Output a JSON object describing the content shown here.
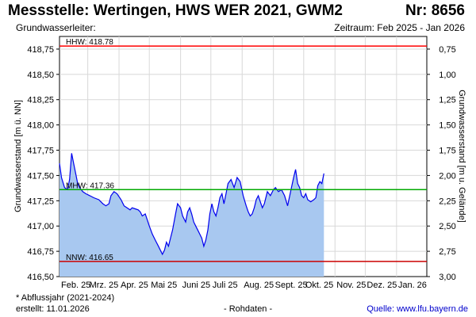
{
  "header": {
    "title": "Messstelle: Wertingen, HWS WER 2021, GWM2",
    "number": "Nr: 8656",
    "aquifer": "Grundwasserleiter:",
    "period": "Zeitraum: Feb 2025 - Jan 2026"
  },
  "footer": {
    "footnote": "* Abflussjahr (2021-2024)",
    "created": "erstellt:  11.01.2026",
    "raw_data": "- Rohdaten -",
    "source": "Quelle: www.lfu.bayern.de"
  },
  "colors": {
    "area_fill": "#a8c8f0",
    "line": "#0000ee",
    "hhw": "#ff0000",
    "mhw": "#00aa00",
    "nnw": "#cc0000",
    "grid": "#d8d8d8"
  },
  "chart_data": {
    "type": "area",
    "ylabel_left": "Grundwasserstand [m ü. NN]",
    "ylabel_right": "Grundwasserstand [m u. Gelände]",
    "ylim_left": [
      416.5,
      418.875
    ],
    "ylim_right": [
      3.0,
      0.625
    ],
    "yticks_left": [
      "418,75",
      "418,50",
      "418,25",
      "418,00",
      "417,75",
      "417,50",
      "417,25",
      "417,00",
      "416,75",
      "416,50"
    ],
    "yticks_right": [
      "0,75",
      "1,00",
      "1,25",
      "1,50",
      "1,75",
      "2,00",
      "2,25",
      "2,50",
      "2,75",
      "3,00"
    ],
    "x_start": "2025-02-01",
    "x_end": "2026-01-31",
    "xtick_dates": [
      "2025-02-01",
      "2025-03-01",
      "2025-04-01",
      "2025-05-01",
      "2025-06-01",
      "2025-07-01",
      "2025-08-01",
      "2025-09-01",
      "2025-10-01",
      "2025-11-01",
      "2025-12-01",
      "2026-01-01"
    ],
    "xtick_labels": [
      "Feb. 25",
      "Mrz. 25",
      "Apr. 25",
      "Mai 25",
      "Juni 25",
      "Juli 25",
      "Aug. 25",
      "Sept. 25",
      "Okt. 25",
      "Nov. 25",
      "Dez. 25",
      "Jan. 26"
    ],
    "grid": true,
    "reference_lines": [
      {
        "label": "HHW: 418.78",
        "value": 418.78,
        "color": "#ff0000"
      },
      {
        "label": "MHW: 417.36",
        "value": 417.36,
        "color": "#00aa00"
      },
      {
        "label": "NNW: 416.65",
        "value": 416.65,
        "color": "#cc0000"
      }
    ],
    "series": [
      {
        "x": [
          "2025-02-01",
          "2025-02-03",
          "2025-02-06",
          "2025-02-09",
          "2025-02-11",
          "2025-02-13",
          "2025-02-15",
          "2025-02-17",
          "2025-02-19",
          "2025-02-21",
          "2025-02-24",
          "2025-02-27",
          "2025-03-03",
          "2025-03-07",
          "2025-03-12",
          "2025-03-16",
          "2025-03-19",
          "2025-03-22",
          "2025-03-24",
          "2025-03-27",
          "2025-03-30",
          "2025-04-03",
          "2025-04-06",
          "2025-04-09",
          "2025-04-12",
          "2025-04-14",
          "2025-04-17",
          "2025-04-20",
          "2025-04-22",
          "2025-04-24",
          "2025-04-27",
          "2025-04-29",
          "2025-05-01",
          "2025-05-04",
          "2025-05-07",
          "2025-05-10",
          "2025-05-12",
          "2025-05-14",
          "2025-05-16",
          "2025-05-18",
          "2025-05-20",
          "2025-05-22",
          "2025-05-24",
          "2025-05-27",
          "2025-05-29",
          "2025-06-01",
          "2025-06-03",
          "2025-06-06",
          "2025-06-08",
          "2025-06-10",
          "2025-06-12",
          "2025-06-14",
          "2025-06-16",
          "2025-06-18",
          "2025-06-20",
          "2025-06-22",
          "2025-06-24",
          "2025-06-26",
          "2025-06-28",
          "2025-06-30",
          "2025-07-02",
          "2025-07-04",
          "2025-07-06",
          "2025-07-08",
          "2025-07-10",
          "2025-07-12",
          "2025-07-14",
          "2025-07-16",
          "2025-07-18",
          "2025-07-21",
          "2025-07-24",
          "2025-07-27",
          "2025-07-30",
          "2025-08-02",
          "2025-08-05",
          "2025-08-07",
          "2025-08-09",
          "2025-08-11",
          "2025-08-13",
          "2025-08-15",
          "2025-08-17",
          "2025-08-19",
          "2025-08-21",
          "2025-08-23",
          "2025-08-26",
          "2025-08-29",
          "2025-09-01",
          "2025-09-03",
          "2025-09-06",
          "2025-09-09",
          "2025-09-12",
          "2025-09-15",
          "2025-09-18",
          "2025-09-21",
          "2025-09-23",
          "2025-09-25",
          "2025-09-27",
          "2025-09-29",
          "2025-10-01",
          "2025-10-03",
          "2025-10-05",
          "2025-10-08",
          "2025-10-11",
          "2025-10-13",
          "2025-10-15",
          "2025-10-17",
          "2025-10-19",
          "2025-10-21"
        ],
        "y": [
          417.62,
          417.48,
          417.38,
          417.36,
          417.46,
          417.72,
          417.62,
          417.52,
          417.42,
          417.38,
          417.34,
          417.32,
          417.3,
          417.28,
          417.26,
          417.22,
          417.2,
          417.22,
          417.3,
          417.34,
          417.32,
          417.26,
          417.2,
          417.18,
          417.16,
          417.18,
          417.17,
          417.16,
          417.14,
          417.1,
          417.12,
          417.06,
          417.0,
          416.92,
          416.86,
          416.8,
          416.76,
          416.72,
          416.76,
          416.84,
          416.8,
          416.88,
          416.96,
          417.12,
          417.22,
          417.18,
          417.1,
          417.04,
          417.14,
          417.18,
          417.12,
          417.04,
          417.0,
          416.96,
          416.92,
          416.88,
          416.8,
          416.86,
          416.96,
          417.12,
          417.22,
          417.14,
          417.1,
          417.18,
          417.28,
          417.32,
          417.22,
          417.32,
          417.42,
          417.46,
          417.38,
          417.48,
          417.44,
          417.3,
          417.2,
          417.14,
          417.1,
          417.12,
          417.18,
          417.26,
          417.3,
          417.24,
          417.18,
          417.22,
          417.34,
          417.3,
          417.36,
          417.38,
          417.34,
          417.36,
          417.3,
          417.2,
          417.34,
          417.48,
          417.56,
          417.42,
          417.38,
          417.3,
          417.28,
          417.32,
          417.26,
          417.24,
          417.26,
          417.28,
          417.4,
          417.44,
          417.42,
          417.52
        ]
      }
    ]
  }
}
